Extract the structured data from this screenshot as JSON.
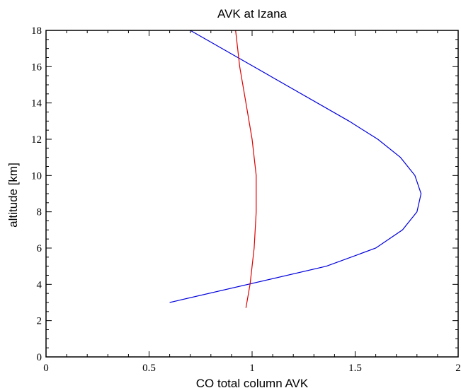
{
  "chart_data": {
    "type": "line",
    "title": "AVK at Izana",
    "xlabel": "CO total column AVK",
    "ylabel": "altitude [km]",
    "xlim": [
      0,
      2
    ],
    "ylim": [
      0,
      18
    ],
    "xticks": [
      0,
      0.5,
      1,
      1.5,
      2
    ],
    "xtick_labels": [
      "0",
      "0.5",
      "1",
      "1.5",
      "2"
    ],
    "yticks": [
      0,
      2,
      4,
      6,
      8,
      10,
      12,
      14,
      16,
      18
    ],
    "ytick_labels": [
      "0",
      "2",
      "4",
      "6",
      "8",
      "10",
      "12",
      "14",
      "16",
      "18"
    ],
    "grid": false,
    "series": [
      {
        "color": "#0000dd",
        "points": [
          {
            "x": 0.6,
            "y": 3.0
          },
          {
            "x": 1.36,
            "y": 5.0
          },
          {
            "x": 1.6,
            "y": 6.0
          },
          {
            "x": 1.73,
            "y": 7.0
          },
          {
            "x": 1.8,
            "y": 8.0
          },
          {
            "x": 1.82,
            "y": 9.0
          },
          {
            "x": 1.79,
            "y": 10.0
          },
          {
            "x": 1.72,
            "y": 11.0
          },
          {
            "x": 1.61,
            "y": 12.0
          },
          {
            "x": 1.47,
            "y": 13.0
          },
          {
            "x": 0.7,
            "y": 18.0
          }
        ]
      },
      {
        "color": "#dd0000",
        "points": [
          {
            "x": 0.97,
            "y": 2.7
          },
          {
            "x": 0.99,
            "y": 4.0
          },
          {
            "x": 1.01,
            "y": 6.0
          },
          {
            "x": 1.02,
            "y": 8.0
          },
          {
            "x": 1.02,
            "y": 10.0
          },
          {
            "x": 1.0,
            "y": 12.0
          },
          {
            "x": 0.97,
            "y": 14.0
          },
          {
            "x": 0.94,
            "y": 16.0
          },
          {
            "x": 0.92,
            "y": 18.0
          }
        ]
      }
    ]
  }
}
